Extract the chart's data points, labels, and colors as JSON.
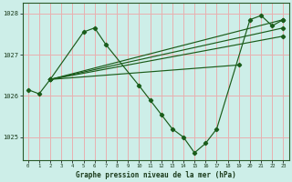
{
  "title": "Graphe pression niveau de la mer (hPa)",
  "bg_color": "#cdeee8",
  "grid_color": "#e8b0b0",
  "line_color": "#1a5c1a",
  "hours": [
    0,
    1,
    2,
    3,
    4,
    5,
    6,
    7,
    8,
    9,
    10,
    11,
    12,
    13,
    14,
    15,
    16,
    17,
    18,
    19,
    20,
    21,
    22,
    23
  ],
  "line_main": [
    1026.15,
    1026.05,
    1026.4,
    null,
    null,
    1027.55,
    1027.65,
    1027.25,
    null,
    null,
    1026.25,
    1025.9,
    1025.55,
    1025.2,
    1025.0,
    1024.62,
    1024.85,
    1025.2,
    null,
    null,
    1027.85,
    1027.95,
    1027.7,
    1027.85
  ],
  "straight_lines": [
    {
      "x0": 2,
      "y0": 1026.4,
      "x1": 23,
      "y1": 1027.85
    },
    {
      "x0": 2,
      "y0": 1026.4,
      "x1": 23,
      "y1": 1027.65
    },
    {
      "x0": 2,
      "y0": 1026.4,
      "x1": 23,
      "y1": 1027.45
    },
    {
      "x0": 2,
      "y0": 1026.4,
      "x1": 19,
      "y1": 1026.75
    }
  ],
  "ylim": [
    1024.45,
    1028.25
  ],
  "yticks": [
    1025,
    1026,
    1027,
    1028
  ],
  "xlim": [
    -0.5,
    23.5
  ],
  "xticks": [
    0,
    1,
    2,
    3,
    4,
    5,
    6,
    7,
    8,
    9,
    10,
    11,
    12,
    13,
    14,
    15,
    16,
    17,
    18,
    19,
    20,
    21,
    22,
    23
  ]
}
